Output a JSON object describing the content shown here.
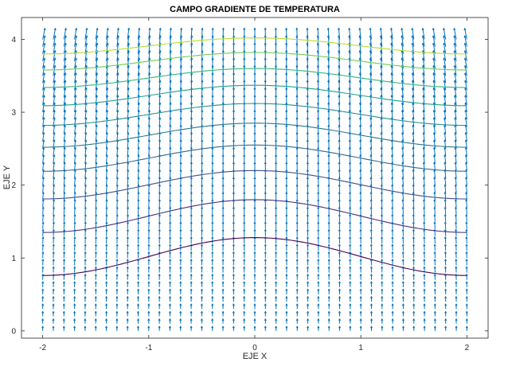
{
  "chart_data": {
    "type": "quiver",
    "title": "CAMPO GRADIENTE DE TEMPERATURA",
    "xlabel": "EJE X",
    "ylabel": "EJE Y",
    "xlim": [
      -2.2,
      2.2
    ],
    "ylim": [
      -0.1,
      4.3
    ],
    "xticks": [
      -2,
      -1,
      0,
      1,
      2
    ],
    "yticks": [
      0,
      1,
      2,
      3,
      4
    ],
    "grid": false,
    "quiver": {
      "x_range": [
        -2,
        2
      ],
      "y_range": [
        0,
        4
      ],
      "x_step": 0.1,
      "y_step": 0.1,
      "color": "#0072bd"
    },
    "contours": [
      {
        "peak_y": 1.28,
        "edge_y": 0.76,
        "color": "#440154"
      },
      {
        "peak_y": 1.8,
        "edge_y": 1.35,
        "color": "#46327e"
      },
      {
        "peak_y": 2.2,
        "edge_y": 1.81,
        "color": "#3b528b"
      },
      {
        "peak_y": 2.55,
        "edge_y": 2.19,
        "color": "#31688e"
      },
      {
        "peak_y": 2.85,
        "edge_y": 2.52,
        "color": "#2a788e"
      },
      {
        "peak_y": 3.12,
        "edge_y": 2.82,
        "color": "#21918c"
      },
      {
        "peak_y": 3.37,
        "edge_y": 3.09,
        "color": "#1fa187"
      },
      {
        "peak_y": 3.6,
        "edge_y": 3.34,
        "color": "#35b779"
      },
      {
        "peak_y": 3.82,
        "edge_y": 3.58,
        "color": "#6ece58"
      },
      {
        "peak_y": 4.02,
        "edge_y": 3.8,
        "color": "#b5de2b"
      }
    ]
  }
}
